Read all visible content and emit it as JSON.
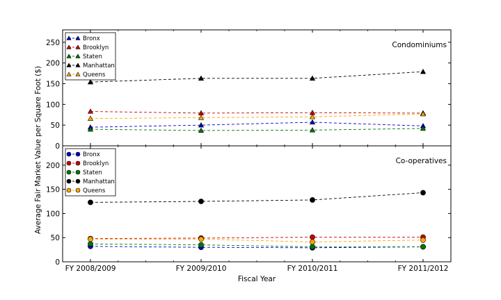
{
  "chart_data": {
    "type": "line",
    "xlabel": "Fiscal Year",
    "ylabel": "Average Fair Market Value per Square Foot ($)",
    "categories": [
      "FY 2008/2009",
      "FY 2009/2010",
      "FY 2010/2011",
      "FY 2011/2012"
    ],
    "panels": [
      {
        "title": "Condominiums",
        "marker": "triangle",
        "ylim": [
          0,
          280
        ],
        "yticks": [
          0,
          50,
          100,
          150,
          200,
          250
        ],
        "legend_position": "top-left",
        "series": [
          {
            "name": "Bronx",
            "color": "#0000cc",
            "values": [
              45,
              50,
              57,
              48
            ]
          },
          {
            "name": "Brooklyn",
            "color": "#cc0000",
            "values": [
              83,
              79,
              80,
              79
            ]
          },
          {
            "name": "Staten",
            "color": "#007700",
            "values": [
              40,
              37,
              38,
              42
            ]
          },
          {
            "name": "Manhattan",
            "color": "#000000",
            "values": [
              154,
              163,
              163,
              179
            ]
          },
          {
            "name": "Queens",
            "color": "#ffa500",
            "values": [
              66,
              68,
              70,
              77
            ]
          }
        ]
      },
      {
        "title": "Co-operatives",
        "marker": "circle",
        "ylim": [
          0,
          240
        ],
        "yticks": [
          0,
          50,
          100,
          150,
          200
        ],
        "legend_position": "top-left",
        "series": [
          {
            "name": "Bronx",
            "color": "#0000cc",
            "values": [
              32,
              30,
              29,
              31
            ]
          },
          {
            "name": "Brooklyn",
            "color": "#cc0000",
            "values": [
              48,
              49,
              51,
              51
            ]
          },
          {
            "name": "Staten",
            "color": "#007700",
            "values": [
              37,
              35,
              31,
              31
            ]
          },
          {
            "name": "Manhattan",
            "color": "#000000",
            "values": [
              123,
              125,
              128,
              143
            ]
          },
          {
            "name": "Queens",
            "color": "#ffa500",
            "values": [
              47,
              47,
              41,
              45
            ]
          }
        ]
      }
    ]
  }
}
